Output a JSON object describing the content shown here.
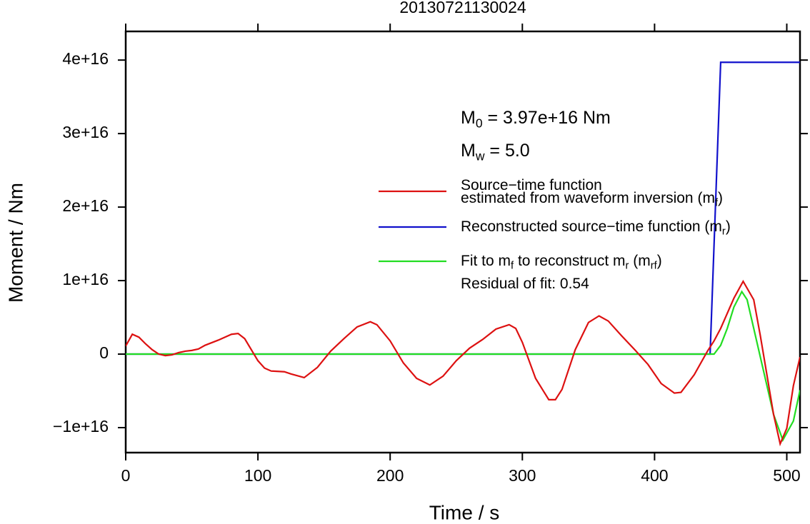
{
  "chart_data": {
    "type": "line",
    "title": "20130721130024",
    "xlabel": "Time / s",
    "ylabel": "Moment / Nm",
    "xlim": [
      0,
      510
    ],
    "ylim": [
      -1.34e+16,
      4.39e+16
    ],
    "xticks": [
      0,
      100,
      200,
      300,
      400,
      500
    ],
    "yticks": [
      {
        "value": -1e+16,
        "label": "−1e+16"
      },
      0,
      {
        "value": 1e+16,
        "label": "1e+16"
      },
      {
        "value": 2e+16,
        "label": "2e+16"
      },
      {
        "value": 3e+16,
        "label": "3e+16"
      },
      {
        "value": 4e+16,
        "label": "4e+16"
      }
    ],
    "annotations": [
      [
        {
          "t": "M"
        },
        {
          "sub": "0"
        },
        {
          "t": " = 3.97e+16 Nm"
        }
      ],
      [
        {
          "t": "M"
        },
        {
          "sub": "w"
        },
        {
          "t": " = 5.0"
        }
      ],
      [
        {
          "t": "Residual of fit: 0.54"
        }
      ]
    ],
    "series": [
      {
        "name": [
          [
            {
              "t": "Source−time function"
            }
          ],
          [
            {
              "t": "estimated from waveform inversion (m"
            },
            {
              "sub": "f"
            },
            {
              "t": ")"
            }
          ]
        ],
        "color": "#dd1111",
        "x": [
          0,
          5,
          10,
          15,
          20,
          25,
          30,
          35,
          40,
          45,
          50,
          55,
          60,
          70,
          80,
          85,
          90,
          100,
          105,
          110,
          120,
          125,
          135,
          145,
          155,
          165,
          175,
          185,
          190,
          200,
          210,
          220,
          230,
          240,
          250,
          260,
          270,
          280,
          290,
          295,
          300,
          310,
          320,
          325,
          330,
          340,
          350,
          358,
          365,
          375,
          385,
          395,
          405,
          415,
          420,
          430,
          440,
          445,
          450,
          460,
          467,
          475,
          480,
          490,
          495,
          500,
          505,
          510
        ],
        "values": [
          1100000000000000.0,
          2700000000000000.0,
          2300000000000000.0,
          1400000000000000.0,
          600000000000000.0,
          0,
          -200000000000000.0,
          -100000000000000.0,
          200000000000000.0,
          400000000000000.0,
          500000000000000.0,
          700000000000000.0,
          1200000000000000.0,
          1900000000000000.0,
          2700000000000000.0,
          2800000000000000.0,
          2100000000000000.0,
          -900000000000000.0,
          -1900000000000000.0,
          -2300000000000000.0,
          -2400000000000000.0,
          -2700000000000000.0,
          -3200000000000000.0,
          -1800000000000000.0,
          400000000000000.0,
          2100000000000000.0,
          3700000000000000.0,
          4400000000000000.0,
          4000000000000000.0,
          1800000000000000.0,
          -1200000000000000.0,
          -3300000000000000.0,
          -4200000000000000.0,
          -3000000000000000.0,
          -900000000000000.0,
          800000000000000.0,
          2000000000000000.0,
          3400000000000000.0,
          4000000000000000.0,
          3500000000000000.0,
          1600000000000000.0,
          -3300000000000000.0,
          -6200000000000000.0,
          -6200000000000000.0,
          -4800000000000000.0,
          600000000000000.0,
          4300000000000000.0,
          5200000000000000.0,
          4500000000000000.0,
          2500000000000000.0,
          600000000000000.0,
          -1400000000000000.0,
          -4000000000000000.0,
          -5300000000000000.0,
          -5200000000000000.0,
          -2800000000000000.0,
          400000000000000.0,
          1800000000000000.0,
          3500000000000000.0,
          7600000000000000.0,
          9900000000000000.0,
          7400000000000000.0,
          2500000000000000.0,
          -8200000000000000.0,
          -1.22e+16,
          -1.01e+16,
          -4300000000000000.0,
          -400000000000000.0
        ]
      },
      {
        "name": [
          [
            {
              "t": "Reconstructed source−time function (m"
            },
            {
              "sub": "r"
            },
            {
              "t": ")"
            }
          ]
        ],
        "color": "#1111cc",
        "x": [
          0,
          442,
          450,
          510
        ],
        "values": [
          0,
          0,
          3.97e+16,
          3.97e+16
        ]
      },
      {
        "name": [
          [
            {
              "t": "Fit to m"
            },
            {
              "sub": "f"
            },
            {
              "t": " to reconstruct m"
            },
            {
              "sub": "r"
            },
            {
              "t": " (m"
            },
            {
              "sub": "rf"
            },
            {
              "t": ")"
            }
          ]
        ],
        "color": "#22dd22",
        "x": [
          0,
          445,
          450,
          455,
          460,
          466,
          470,
          480,
          490,
          497,
          505,
          510
        ],
        "values": [
          0,
          0,
          1200000000000000.0,
          3500000000000000.0,
          6400000000000000.0,
          8500000000000000.0,
          7400000000000000.0,
          -400000000000000.0,
          -8200000000000000.0,
          -1.17e+16,
          -9100000000000000.0,
          -4900000000000000.0
        ]
      }
    ]
  }
}
